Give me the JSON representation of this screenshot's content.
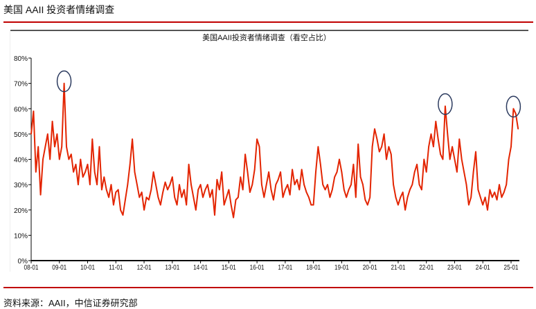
{
  "header": {
    "title": "美国 AAII 投资者情绪调查"
  },
  "footer": {
    "source": "资料来源：AAII，中信证券研究部"
  },
  "colors": {
    "line": "#e32400",
    "circle": "#2b3a5e",
    "accent_rule": "#c00000"
  },
  "chart_data": {
    "type": "line",
    "title": "美国AAII投资者情绪调查（看空占比）",
    "xlabel": "",
    "ylabel": "",
    "ylim": [
      0,
      80
    ],
    "yticks": [
      "0%",
      "10%",
      "20%",
      "30%",
      "40%",
      "50%",
      "60%",
      "70%",
      "80%"
    ],
    "xticks": [
      "08-01",
      "09-01",
      "10-01",
      "11-01",
      "12-01",
      "13-01",
      "14-01",
      "15-01",
      "16-01",
      "17-01",
      "18-01",
      "19-01",
      "20-01",
      "21-01",
      "22-01",
      "23-01",
      "24-01",
      "25-01"
    ],
    "grid": false,
    "legend": "none",
    "series": [
      {
        "monthly_values_by_year": {
          "2008": [
            50,
            59,
            35,
            45,
            26,
            40,
            45,
            50,
            40,
            55,
            45,
            50
          ],
          "2009": [
            40,
            45,
            70,
            45,
            40,
            42,
            35,
            38,
            30,
            40,
            33,
            35
          ],
          "2010": [
            38,
            30,
            48,
            35,
            30,
            45,
            28,
            33,
            28,
            25,
            30,
            22
          ],
          "2011": [
            27,
            28,
            20,
            18,
            24,
            30,
            38,
            48,
            35,
            30,
            25,
            27
          ],
          "2012": [
            20,
            25,
            24,
            28,
            35,
            30,
            25,
            22,
            27,
            31,
            28,
            30
          ],
          "2013": [
            33,
            25,
            22,
            30,
            25,
            28,
            22,
            38,
            30,
            25,
            20,
            28
          ],
          "2014": [
            30,
            25,
            28,
            30,
            25,
            28,
            18,
            32,
            28,
            35,
            22,
            25
          ],
          "2015": [
            28,
            22,
            17,
            24,
            25,
            33,
            28,
            42,
            35,
            27,
            30,
            36
          ],
          "2016": [
            48,
            45,
            30,
            25,
            30,
            35,
            28,
            24,
            30,
            32,
            35,
            25
          ],
          "2017": [
            28,
            30,
            26,
            36,
            30,
            32,
            28,
            36,
            30,
            27,
            25,
            22
          ],
          "2018": [
            22,
            35,
            45,
            38,
            30,
            28,
            30,
            25,
            28,
            33,
            35,
            40
          ],
          "2019": [
            35,
            28,
            25,
            28,
            30,
            38,
            25,
            46,
            33,
            30,
            24,
            22
          ],
          "2020": [
            25,
            45,
            52,
            48,
            43,
            45,
            50,
            40,
            45,
            42,
            30,
            25
          ],
          "2021": [
            22,
            25,
            27,
            20,
            25,
            28,
            30,
            35,
            38,
            30,
            28,
            40
          ],
          "2022": [
            35,
            45,
            50,
            45,
            55,
            48,
            42,
            40,
            61,
            50,
            40,
            45
          ],
          "2023": [
            40,
            35,
            48,
            40,
            35,
            30,
            22,
            25,
            35,
            43,
            28,
            25
          ],
          "2024": [
            22,
            25,
            20,
            28,
            25,
            27,
            24,
            30,
            25,
            27,
            30,
            40
          ],
          "2025": [
            45,
            60,
            58,
            52
          ]
        }
      }
    ],
    "annotations": [
      {
        "type": "circle",
        "date": "2009-03"
      },
      {
        "type": "circle",
        "date": "2022-09"
      },
      {
        "type": "circle",
        "date": "2025-02"
      }
    ]
  }
}
